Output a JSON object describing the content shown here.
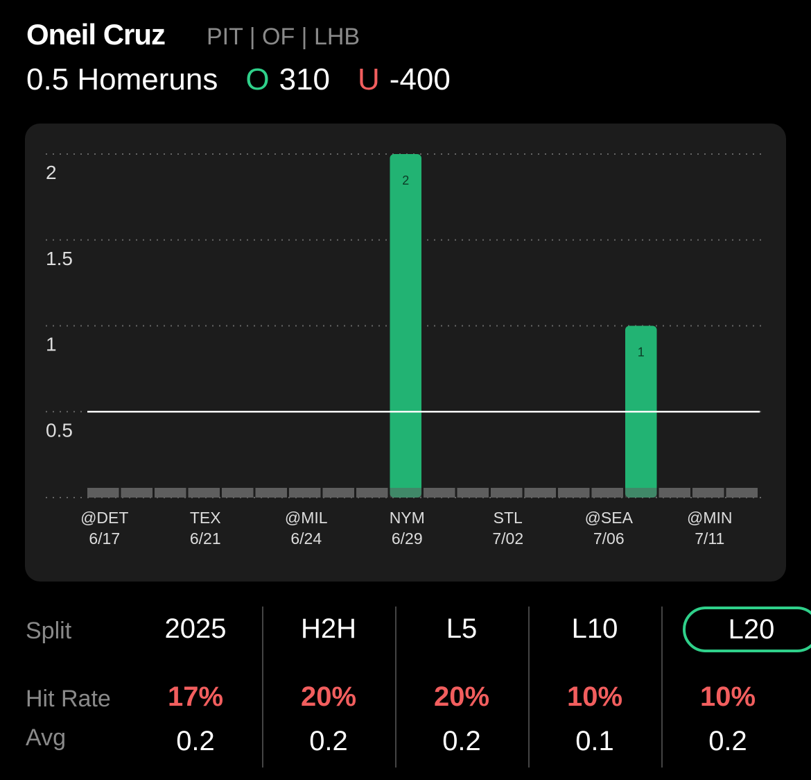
{
  "player": {
    "name": "Oneil Cruz",
    "meta": "PIT | OF | LHB"
  },
  "prop": {
    "line": "0.5 Homeruns",
    "over_label": "O",
    "over_odds": "310",
    "under_label": "U",
    "under_odds": "-400"
  },
  "colors": {
    "over": "#2fd08a",
    "under": "#f25e5e",
    "bar_hit": "#22b373",
    "bar_miss": "#5e5e5e"
  },
  "chart_data": {
    "type": "bar",
    "categories": [
      "@DET 6/17",
      "",
      "",
      "TEX 6/21",
      "",
      "",
      "@MIL 6/24",
      "",
      "",
      "NYM 6/29",
      "",
      "",
      "STL 7/02",
      "",
      "",
      "@SEA 7/06",
      "",
      "",
      "@MIN 7/11",
      ""
    ],
    "tick_labels": [
      {
        "index": 0,
        "team": "@DET",
        "date": "6/17"
      },
      {
        "index": 3,
        "team": "TEX",
        "date": "6/21"
      },
      {
        "index": 6,
        "team": "@MIL",
        "date": "6/24"
      },
      {
        "index": 9,
        "team": "NYM",
        "date": "6/29"
      },
      {
        "index": 12,
        "team": "STL",
        "date": "7/02"
      },
      {
        "index": 15,
        "team": "@SEA",
        "date": "7/06"
      },
      {
        "index": 18,
        "team": "@MIN",
        "date": "7/11"
      }
    ],
    "values": [
      0,
      0,
      0,
      0,
      0,
      0,
      0,
      0,
      0,
      2,
      0,
      0,
      0,
      0,
      0,
      0,
      1,
      0,
      0,
      0
    ],
    "yticks": [
      "0.5",
      "1",
      "1.5",
      "2"
    ],
    "ylim": [
      0,
      2
    ],
    "threshold": 0.5,
    "grid": true
  },
  "splits": {
    "row_labels": {
      "split": "Split",
      "hit_rate": "Hit Rate",
      "avg": "Avg"
    },
    "columns": [
      {
        "label": "2025",
        "hit_rate": "17%",
        "avg": "0.2",
        "selected": false
      },
      {
        "label": "H2H",
        "hit_rate": "20%",
        "avg": "0.2",
        "selected": false
      },
      {
        "label": "L5",
        "hit_rate": "20%",
        "avg": "0.2",
        "selected": false
      },
      {
        "label": "L10",
        "hit_rate": "10%",
        "avg": "0.1",
        "selected": false
      },
      {
        "label": "L20",
        "hit_rate": "10%",
        "avg": "0.2",
        "selected": true
      }
    ]
  }
}
